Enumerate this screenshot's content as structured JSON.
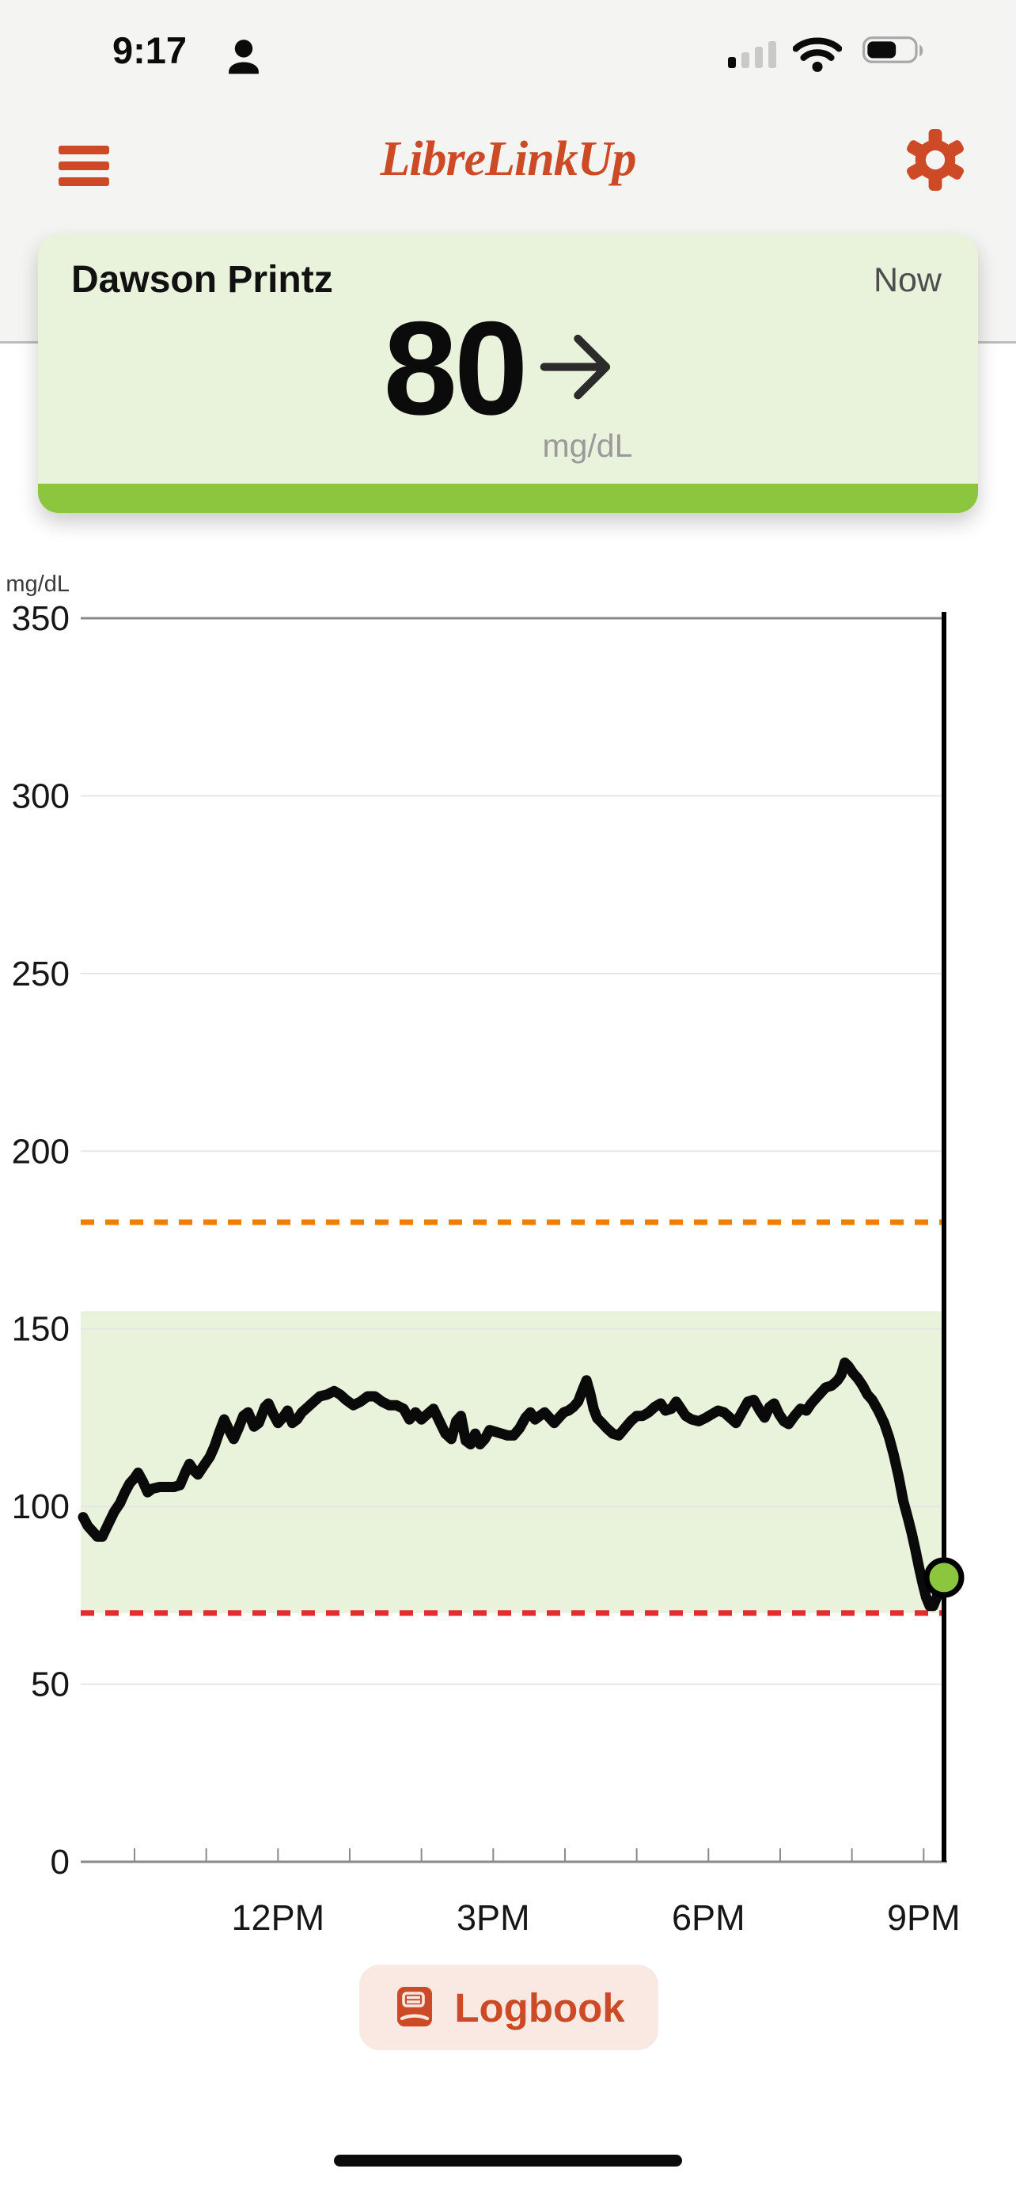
{
  "status_bar": {
    "time": "9:17",
    "person_icon": "person-icon",
    "cellular": {
      "bars_total": 4,
      "bars_filled": 1
    },
    "wifi": "full",
    "battery_fill_ratio": 0.62
  },
  "header": {
    "title": "LibreLinkUp",
    "menu_icon": "hamburger-icon",
    "settings_icon": "gear-icon"
  },
  "patient_card": {
    "name": "Dawson Printz",
    "timestamp_label": "Now",
    "glucose_value": "80",
    "glucose_unit": "mg/dL",
    "trend_icon": "arrow-right-steady",
    "background_color": "#E9F2DB",
    "strip_color": "#8CC63F"
  },
  "chart_data": {
    "type": "line",
    "unit_label": "mg/dL",
    "ylim": [
      0,
      350
    ],
    "yticks": [
      0,
      50,
      100,
      150,
      200,
      250,
      300,
      350
    ],
    "grid": true,
    "x_window_minutes": 720,
    "hour_tick_offsets_min": [
      43,
      103,
      163,
      223,
      283,
      343,
      403,
      463,
      523,
      583,
      643,
      703
    ],
    "xtick_labels": [
      {
        "offset_min": 163,
        "label": "12PM"
      },
      {
        "offset_min": 343,
        "label": "3PM"
      },
      {
        "offset_min": 523,
        "label": "6PM"
      },
      {
        "offset_min": 703,
        "label": "9PM"
      }
    ],
    "target_range": {
      "low": 70,
      "high": 155,
      "fill": "#E9F2DB"
    },
    "high_threshold": {
      "value": 180,
      "color": "#F07E00",
      "style": "dashed"
    },
    "low_threshold": {
      "value": 70,
      "color": "#E12D2D",
      "style": "dashed"
    },
    "now_line_color": "#000000",
    "current_point": {
      "offset_min": 720,
      "value": 80,
      "dot_color": "#8CC63F"
    },
    "series": [
      {
        "name": "glucose",
        "color": "#0A0A0A",
        "points": [
          [
            0,
            97
          ],
          [
            4,
            94.5
          ],
          [
            8,
            93
          ],
          [
            12,
            91.5
          ],
          [
            16,
            91.5
          ],
          [
            21,
            95
          ],
          [
            26,
            98.5
          ],
          [
            31,
            101
          ],
          [
            35,
            104
          ],
          [
            39,
            106.5
          ],
          [
            43,
            108
          ],
          [
            46,
            109.5
          ],
          [
            50,
            107
          ],
          [
            54,
            104
          ],
          [
            58,
            105
          ],
          [
            64,
            105.5
          ],
          [
            70,
            105.5
          ],
          [
            76,
            105.5
          ],
          [
            81,
            106
          ],
          [
            86,
            110
          ],
          [
            89,
            112
          ],
          [
            93,
            110
          ],
          [
            96,
            109
          ],
          [
            101,
            111.5
          ],
          [
            106,
            114
          ],
          [
            110,
            117
          ],
          [
            114,
            121
          ],
          [
            118,
            124.5
          ],
          [
            122,
            121.5
          ],
          [
            126,
            119
          ],
          [
            130,
            122
          ],
          [
            134,
            125.5
          ],
          [
            138,
            126.5
          ],
          [
            143,
            122.5
          ],
          [
            147,
            123.5
          ],
          [
            152,
            128
          ],
          [
            155,
            129
          ],
          [
            159,
            126
          ],
          [
            163,
            123.5
          ],
          [
            167,
            125
          ],
          [
            171,
            127
          ],
          [
            175,
            123.5
          ],
          [
            179,
            124.5
          ],
          [
            183,
            126.5
          ],
          [
            188,
            128
          ],
          [
            193,
            129.5
          ],
          [
            198,
            131
          ],
          [
            204,
            131.5
          ],
          [
            210,
            132.5
          ],
          [
            215,
            131.5
          ],
          [
            220,
            130
          ],
          [
            226,
            128.5
          ],
          [
            232,
            129.5
          ],
          [
            238,
            131
          ],
          [
            244,
            131
          ],
          [
            250,
            129.5
          ],
          [
            256,
            128.5
          ],
          [
            262,
            128.5
          ],
          [
            268,
            127.5
          ],
          [
            273,
            124.5
          ],
          [
            278,
            126.5
          ],
          [
            283,
            124.5
          ],
          [
            288,
            126
          ],
          [
            293,
            127.5
          ],
          [
            298,
            124
          ],
          [
            303,
            120.5
          ],
          [
            308,
            119
          ],
          [
            312,
            124
          ],
          [
            316,
            125.5
          ],
          [
            320,
            118.5
          ],
          [
            324,
            117.5
          ],
          [
            328,
            120.5
          ],
          [
            332,
            117.5
          ],
          [
            336,
            119
          ],
          [
            340,
            121.5
          ],
          [
            345,
            121
          ],
          [
            350,
            120.5
          ],
          [
            355,
            120
          ],
          [
            360,
            120
          ],
          [
            365,
            122
          ],
          [
            370,
            125
          ],
          [
            374,
            126.5
          ],
          [
            378,
            124.5
          ],
          [
            382,
            125.5
          ],
          [
            386,
            126.5
          ],
          [
            390,
            125
          ],
          [
            394,
            123.5
          ],
          [
            398,
            125
          ],
          [
            402,
            126.5
          ],
          [
            406,
            127
          ],
          [
            410,
            128
          ],
          [
            414,
            129.5
          ],
          [
            418,
            133
          ],
          [
            421,
            135.5
          ],
          [
            424,
            132
          ],
          [
            427,
            127.5
          ],
          [
            430,
            124.8
          ],
          [
            434,
            123.5
          ],
          [
            438,
            122
          ],
          [
            443,
            120.5
          ],
          [
            448,
            120
          ],
          [
            453,
            122
          ],
          [
            458,
            124
          ],
          [
            463,
            125.5
          ],
          [
            468,
            125.5
          ],
          [
            473,
            126.5
          ],
          [
            478,
            128
          ],
          [
            483,
            129
          ],
          [
            487,
            127
          ],
          [
            492,
            127.5
          ],
          [
            496,
            129.5
          ],
          [
            500,
            127.5
          ],
          [
            504,
            125.5
          ],
          [
            509,
            124.5
          ],
          [
            515,
            124
          ],
          [
            521,
            125
          ],
          [
            526,
            126
          ],
          [
            531,
            127
          ],
          [
            536,
            126.5
          ],
          [
            541,
            125
          ],
          [
            546,
            123.5
          ],
          [
            551,
            126.5
          ],
          [
            556,
            129.5
          ],
          [
            561,
            130
          ],
          [
            566,
            127
          ],
          [
            570,
            125
          ],
          [
            574,
            128
          ],
          [
            578,
            129
          ],
          [
            582,
            126
          ],
          [
            586,
            124
          ],
          [
            590,
            123.2
          ],
          [
            595,
            125.5
          ],
          [
            600,
            127.5
          ],
          [
            605,
            127
          ],
          [
            609,
            129
          ],
          [
            613,
            130.5
          ],
          [
            617,
            132
          ],
          [
            621,
            133.5
          ],
          [
            626,
            134
          ],
          [
            631,
            135.5
          ],
          [
            634,
            137
          ],
          [
            637,
            140.5
          ],
          [
            640,
            139.5
          ],
          [
            644,
            137.5
          ],
          [
            648,
            136
          ],
          [
            652,
            134
          ],
          [
            656,
            131.5
          ],
          [
            660,
            130
          ],
          [
            665,
            127
          ],
          [
            670,
            123.5
          ],
          [
            674,
            119.5
          ],
          [
            678,
            114.5
          ],
          [
            682,
            108.5
          ],
          [
            686,
            101.5
          ],
          [
            690,
            96.5
          ],
          [
            693,
            92.5
          ],
          [
            696,
            88
          ],
          [
            699,
            83
          ],
          [
            702,
            78.5
          ],
          [
            705,
            74.5
          ],
          [
            708,
            72
          ],
          [
            711,
            72
          ],
          [
            714,
            74.5
          ],
          [
            717,
            77
          ],
          [
            720,
            80
          ]
        ]
      }
    ]
  },
  "logbook": {
    "label": "Logbook",
    "icon": "book-icon"
  },
  "colors": {
    "brand_orange": "#CC4A26",
    "green_accent": "#8CC63F",
    "band_fill": "#E9F2DB",
    "high_line": "#F07E00",
    "low_line": "#E12D2D",
    "top_zone_bg": "#F4F4F2",
    "logbook_bg": "#FAE9E3"
  }
}
